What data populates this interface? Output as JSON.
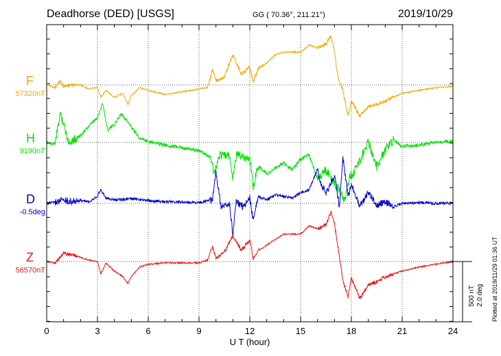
{
  "header": {
    "title": "Deadhorse (DED)  [USGS]",
    "coords": "GG ( 70.36°, 211.21°)",
    "date": "2019/10/29"
  },
  "footer": {
    "plotted": "Plotted at 2019/11/29 01:36 UT"
  },
  "scale": {
    "nt": "500 nT",
    "deg": "2.0 deg"
  },
  "chart_data": {
    "type": "line",
    "title": "Deadhorse (DED)  [USGS]",
    "xlabel": "U T (hour)",
    "ylabel": "",
    "xlim": [
      0,
      24
    ],
    "xticks": [
      0,
      3,
      6,
      9,
      12,
      15,
      18,
      21,
      24
    ],
    "grid": true,
    "scale_bar": {
      "nT": 500,
      "deg": 2.0
    },
    "series": [
      {
        "name": "F",
        "baseline_label": "57320nT",
        "color": "#f5a800",
        "unit": "nT",
        "x": [
          0,
          0.5,
          0.8,
          1,
          1.5,
          2,
          2.5,
          3,
          3.2,
          3.5,
          4,
          4.5,
          4.8,
          5,
          5.5,
          6,
          7,
          8,
          9,
          9.5,
          9.8,
          10,
          10.5,
          11,
          11.5,
          12,
          12.2,
          12.5,
          13,
          13.5,
          14,
          15,
          15.5,
          16,
          16.5,
          16.8,
          17,
          17.2,
          17.5,
          17.8,
          18,
          18.5,
          19,
          19.5,
          20,
          21,
          22,
          23,
          24
        ],
        "values": [
          57320,
          57300,
          57350,
          57310,
          57320,
          57320,
          57290,
          57300,
          57230,
          57280,
          57230,
          57260,
          57180,
          57240,
          57300,
          57280,
          57250,
          57270,
          57290,
          57300,
          57430,
          57350,
          57380,
          57540,
          57400,
          57450,
          57340,
          57440,
          57480,
          57540,
          57560,
          57560,
          57610,
          57590,
          57620,
          57680,
          57560,
          57380,
          57280,
          57090,
          57200,
          57090,
          57160,
          57180,
          57200,
          57260,
          57280,
          57300,
          57310
        ]
      },
      {
        "name": "H",
        "baseline_label": "9190nT",
        "color": "#00e000",
        "unit": "nT",
        "x": [
          0,
          0.5,
          0.8,
          1,
          1.3,
          1.6,
          2,
          2.5,
          3,
          3.3,
          3.6,
          4,
          4.4,
          4.8,
          5,
          5.5,
          6,
          7,
          8,
          9,
          9.7,
          9.9,
          10.2,
          10.8,
          11,
          11.2,
          12,
          12.2,
          12.5,
          13,
          13.5,
          14,
          14.5,
          15,
          15.5,
          16,
          16.5,
          17,
          17.3,
          17.6,
          17.9,
          18.2,
          18.5,
          19,
          19.5,
          20,
          20.5,
          21,
          22,
          23,
          24
        ],
        "values": [
          9190,
          9180,
          9400,
          9330,
          9190,
          9210,
          9240,
          9310,
          9370,
          9480,
          9280,
          9320,
          9400,
          9340,
          9300,
          9220,
          9200,
          9170,
          9150,
          9130,
          9080,
          8960,
          9100,
          9090,
          8920,
          9100,
          9070,
          8870,
          9020,
          8960,
          9000,
          9040,
          8990,
          9070,
          9100,
          8920,
          8990,
          8890,
          8840,
          8760,
          8940,
          8980,
          9060,
          9200,
          9010,
          9140,
          9210,
          9160,
          9170,
          9190,
          9200
        ]
      },
      {
        "name": "D",
        "baseline_label": "-0.5deg",
        "color": "#0000cc",
        "unit": "deg",
        "x": [
          0,
          0.5,
          1,
          1.5,
          2,
          2.5,
          3,
          3.2,
          3.5,
          4,
          5,
          6,
          7,
          8,
          9,
          9.8,
          10,
          10.3,
          10.8,
          11,
          11.2,
          11.6,
          12,
          12.2,
          12.5,
          13,
          13.5,
          14,
          14.5,
          15,
          15.5,
          16,
          16.2,
          16.5,
          17,
          17.3,
          17.5,
          17.8,
          18,
          18.5,
          19,
          19.5,
          20,
          20.5,
          21,
          22,
          23,
          24
        ],
        "values": [
          -0.5,
          -0.47,
          -0.4,
          -0.45,
          -0.42,
          -0.45,
          -0.28,
          -0.1,
          -0.35,
          -0.4,
          -0.37,
          -0.42,
          -0.45,
          -0.46,
          -0.48,
          -0.4,
          0.4,
          -0.6,
          -0.52,
          -1.4,
          -0.45,
          -0.6,
          -0.35,
          -1.0,
          -0.3,
          -0.4,
          -0.25,
          -0.3,
          -0.35,
          -0.2,
          -0.1,
          0.5,
          0.1,
          -0.2,
          0.3,
          -0.6,
          0.8,
          -0.3,
          0.05,
          -0.6,
          -0.2,
          -0.55,
          -0.45,
          -0.6,
          -0.5,
          -0.48,
          -0.5,
          -0.5
        ]
      },
      {
        "name": "Z",
        "baseline_label": "56570nT",
        "color": "#ee1111",
        "unit": "nT",
        "x": [
          0,
          0.5,
          1,
          1.5,
          2,
          2.5,
          3,
          3.2,
          3.5,
          4,
          4.5,
          4.8,
          5,
          5.5,
          6,
          7,
          8,
          9,
          9.5,
          9.8,
          10,
          10.5,
          11,
          11.5,
          12,
          12.2,
          12.5,
          13,
          13.5,
          14,
          15,
          15.5,
          16,
          16.5,
          16.8,
          17,
          17.2,
          17.5,
          17.8,
          18,
          18.5,
          19,
          19.5,
          20,
          21,
          22,
          23,
          24
        ],
        "values": [
          56570,
          56560,
          56630,
          56620,
          56600,
          56580,
          56570,
          56480,
          56560,
          56500,
          56460,
          56410,
          56460,
          56530,
          56550,
          56560,
          56560,
          56560,
          56580,
          56680,
          56590,
          56640,
          56760,
          56650,
          56730,
          56590,
          56650,
          56690,
          56730,
          56770,
          56770,
          56830,
          56810,
          56840,
          56930,
          56850,
          56680,
          56430,
          56310,
          56450,
          56300,
          56400,
          56420,
          56460,
          56500,
          56530,
          56550,
          56570
        ]
      }
    ]
  }
}
